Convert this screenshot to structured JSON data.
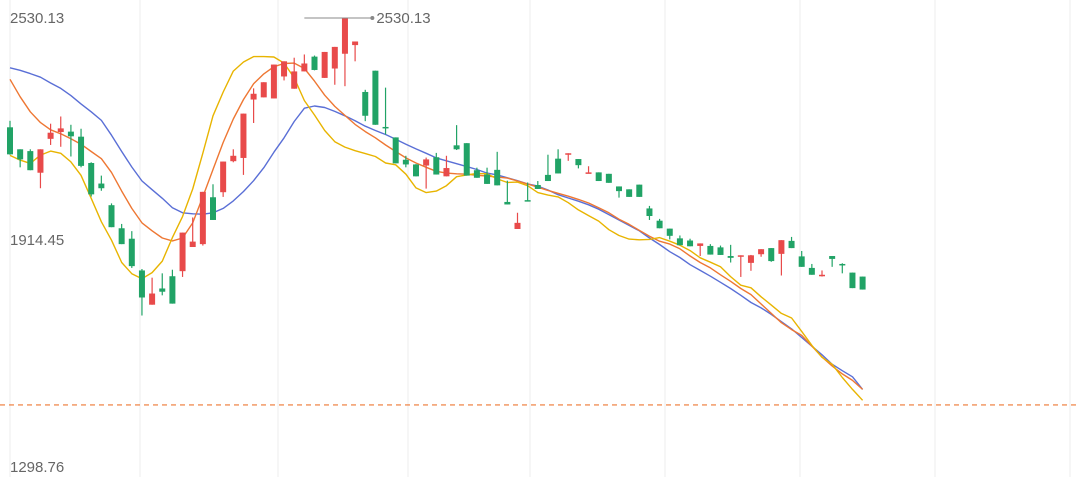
{
  "chart_data": {
    "type": "candlestick",
    "y_axis": {
      "min": 1298.76,
      "max": 2530.13,
      "labels": [
        "2530.13",
        "1914.45",
        "1298.76"
      ]
    },
    "max_marker": {
      "label": "2530.13",
      "value": 2530.13
    },
    "reference_line": {
      "value": 1457,
      "color": "#ee7733",
      "style": "dashed"
    },
    "grid": "vertical",
    "colors": {
      "up": "#e84a4a",
      "down": "#21a366",
      "ma_short": "#e8b400",
      "ma_mid": "#ee7733",
      "ma_long": "#5a6fd6"
    },
    "ma_short": [
      2149,
      2136,
      2127,
      2150,
      2161,
      2155,
      2131,
      2094,
      2030,
      1965,
      1914,
      1852,
      1821,
      1807,
      1824,
      1856,
      1921,
      1980,
      2056,
      2155,
      2259,
      2325,
      2383,
      2408,
      2423,
      2423,
      2422,
      2405,
      2364,
      2301,
      2261,
      2218,
      2187,
      2172,
      2162,
      2154,
      2146,
      2128,
      2123,
      2097,
      2059,
      2046,
      2050,
      2065,
      2090,
      2095,
      2099,
      2098,
      2084,
      2074,
      2075,
      2065,
      2046,
      2039,
      2034,
      2018,
      1998,
      1982,
      1967,
      1943,
      1927,
      1917,
      1915,
      1916,
      1921,
      1911,
      1900,
      1885,
      1865,
      1853,
      1840,
      1813,
      1789,
      1782,
      1757,
      1734,
      1711,
      1698,
      1661,
      1622,
      1589,
      1570,
      1533,
      1500,
      1470
    ],
    "ma_mid": [
      2360,
      2312,
      2270,
      2240,
      2220,
      2209,
      2195,
      2180,
      2160,
      2140,
      2102,
      2050,
      2002,
      1962,
      1940,
      1920,
      1912,
      1920,
      1962,
      2034,
      2110,
      2185,
      2250,
      2304,
      2348,
      2375,
      2395,
      2404,
      2405,
      2390,
      2355,
      2316,
      2285,
      2260,
      2235,
      2215,
      2198,
      2178,
      2160,
      2142,
      2128,
      2116,
      2105,
      2100,
      2098,
      2097,
      2094,
      2092,
      2089,
      2086,
      2078,
      2070,
      2061,
      2052,
      2044,
      2036,
      2027,
      2017,
      2004,
      1990,
      1972,
      1958,
      1941,
      1925,
      1911,
      1903,
      1890,
      1870,
      1852,
      1837,
      1818,
      1800,
      1780,
      1763,
      1737,
      1711,
      1685,
      1666,
      1650,
      1620,
      1590,
      1565,
      1543,
      1525,
      1500
    ],
    "ma_long": [
      2392,
      2385,
      2376,
      2366,
      2350,
      2335,
      2315,
      2292,
      2270,
      2246,
      2205,
      2160,
      2117,
      2078,
      2054,
      2030,
      2004,
      1990,
      1987,
      1986,
      1990,
      2002,
      2023,
      2049,
      2079,
      2115,
      2158,
      2198,
      2243,
      2280,
      2286,
      2282,
      2271,
      2259,
      2245,
      2230,
      2218,
      2207,
      2194,
      2180,
      2167,
      2155,
      2142,
      2134,
      2126,
      2118,
      2110,
      2100,
      2095,
      2087,
      2079,
      2070,
      2064,
      2053,
      2040,
      2031,
      2022,
      2012,
      2000,
      1985,
      1970,
      1955,
      1940,
      1920,
      1902,
      1882,
      1866,
      1846,
      1830,
      1814,
      1797,
      1780,
      1761,
      1741,
      1726,
      1708,
      1688,
      1668,
      1644,
      1620,
      1596,
      1570,
      1552,
      1535,
      1500
    ],
    "candles_ohlc": [
      [
        2227,
        2245,
        2151,
        2152
      ],
      [
        2166,
        2166,
        2116,
        2138
      ],
      [
        2161,
        2166,
        2113,
        2108
      ],
      [
        2101,
        2154,
        2058,
        2166
      ],
      [
        2195,
        2237,
        2178,
        2212
      ],
      [
        2214,
        2257,
        2173,
        2224
      ],
      [
        2215,
        2234,
        2146,
        2202
      ],
      [
        2201,
        2223,
        2116,
        2120
      ],
      [
        2128,
        2130,
        2035,
        2041
      ],
      [
        2071,
        2093,
        2051,
        2058
      ],
      [
        2011,
        2016,
        1961,
        1950
      ],
      [
        1947,
        1959,
        1939,
        1903
      ],
      [
        1918,
        1939,
        1837,
        1842
      ],
      [
        1830,
        1834,
        1705,
        1755
      ],
      [
        1735,
        1810,
        1736,
        1766
      ],
      [
        1780,
        1822,
        1761,
        1771
      ],
      [
        1814,
        1832,
        1789,
        1738
      ],
      [
        1828,
        1880,
        1812,
        1935
      ],
      [
        1895,
        1977,
        1896,
        1910
      ],
      [
        1903,
        1982,
        1899,
        2048
      ],
      [
        2033,
        2069,
        1995,
        1970
      ],
      [
        2047,
        2103,
        2034,
        2132
      ],
      [
        2133,
        2166,
        2130,
        2148
      ],
      [
        2142,
        2162,
        2095,
        2265
      ],
      [
        2304,
        2335,
        2239,
        2320
      ],
      [
        2310,
        2339,
        2312,
        2352
      ],
      [
        2307,
        2357,
        2315,
        2401
      ],
      [
        2368,
        2369,
        2357,
        2410
      ],
      [
        2334,
        2420,
        2363,
        2382
      ],
      [
        2382,
        2429,
        2392,
        2404
      ],
      [
        2423,
        2385,
        2426,
        2386
      ],
      [
        2364,
        2399,
        2368,
        2436
      ],
      [
        2390,
        2345,
        2371,
        2450
      ],
      [
        2431,
        2442,
        2341,
        2530
      ],
      [
        2455,
        2454,
        2410,
        2465
      ],
      [
        2325,
        2331,
        2244,
        2259
      ],
      [
        2384,
        2373,
        2292,
        2234
      ],
      [
        2228,
        2337,
        2207,
        2227
      ],
      [
        2199,
        2192,
        2179,
        2127
      ],
      [
        2137,
        2148,
        2116,
        2124
      ],
      [
        2124,
        2125,
        2108,
        2091
      ],
      [
        2121,
        2057,
        2143,
        2138
      ],
      [
        2144,
        2146,
        2156,
        2096
      ],
      [
        2091,
        2148,
        2127,
        2114
      ],
      [
        2177,
        2164,
        2233,
        2166
      ],
      [
        2183,
        2107,
        2133,
        2093
      ],
      [
        2108,
        2107,
        2115,
        2087
      ],
      [
        2096,
        2095,
        2115,
        2070
      ],
      [
        2109,
        2088,
        2159,
        2066
      ],
      [
        2020,
        2060,
        2079,
        2013
      ],
      [
        1945,
        1958,
        1990,
        1962
      ],
      [
        2025,
        2027,
        2074,
        2024
      ],
      [
        2067,
        2076,
        2078,
        2056
      ],
      [
        2095,
        2111,
        2151,
        2078
      ],
      [
        2140,
        2143,
        2166,
        2099
      ],
      [
        2153,
        2135,
        2134,
        2155
      ],
      [
        2139,
        2118,
        2113,
        2122
      ],
      [
        2102,
        2101,
        2119,
        2102
      ],
      [
        2102,
        2101,
        2091,
        2078
      ],
      [
        2098,
        2098,
        2083,
        2073
      ],
      [
        2063,
        2060,
        2032,
        2050
      ],
      [
        2055,
        2051,
        2036,
        2034
      ],
      [
        2068,
        2065,
        2054,
        2034
      ],
      [
        2002,
        2009,
        1970,
        1981
      ],
      [
        1968,
        1973,
        1962,
        1947
      ],
      [
        1946,
        1946,
        1916,
        1926
      ],
      [
        1919,
        1927,
        1901,
        1900
      ],
      [
        1913,
        1918,
        1914,
        1897
      ],
      [
        1898,
        1905,
        1870,
        1905
      ],
      [
        1898,
        1903,
        1893,
        1874
      ],
      [
        1894,
        1899,
        1878,
        1873
      ],
      [
        1870,
        1901,
        1852,
        1865
      ],
      [
        1868,
        1872,
        1812,
        1872
      ],
      [
        1851,
        1873,
        1829,
        1872
      ],
      [
        1875,
        1868,
        1868,
        1889
      ],
      [
        1892,
        1860,
        1854,
        1856
      ],
      [
        1876,
        1884,
        1816,
        1914
      ],
      [
        1912,
        1923,
        1898,
        1892
      ],
      [
        1869,
        1884,
        1880,
        1840
      ],
      [
        1837,
        1848,
        1847,
        1818
      ],
      [
        1818,
        1813,
        1830,
        1818
      ],
      [
        1870,
        1848,
        1840,
        1862
      ],
      [
        1848,
        1850,
        1822,
        1844
      ],
      [
        1824,
        1815,
        1806,
        1781
      ],
      [
        1813,
        1795,
        1787,
        1777
      ]
    ]
  }
}
